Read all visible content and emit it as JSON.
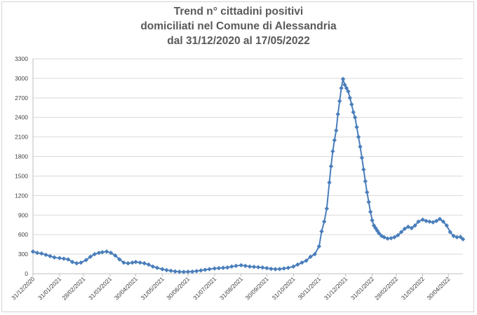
{
  "chart_data": {
    "type": "line",
    "title": [
      "Trend n° cittadini positivi",
      "domiciliati nel Comune di Alessandria",
      "dal 31/12/2020 al 17/05/2022"
    ],
    "xlabel": "",
    "ylabel": "",
    "ylim": [
      0,
      3300
    ],
    "yticks": [
      0,
      300,
      600,
      900,
      1200,
      1500,
      1800,
      2100,
      2400,
      2700,
      3000,
      3300
    ],
    "xlim": [
      "2020-12-31",
      "2022-05-17"
    ],
    "xticks": [
      "31/12/2020",
      "31/01/2021",
      "28/02/2021",
      "31/03/2021",
      "30/04/2021",
      "31/05/2021",
      "30/06/2021",
      "31/07/2021",
      "31/08/2021",
      "30/09/2021",
      "31/10/2021",
      "30/11/2021",
      "31/12/2021",
      "31/01/2022",
      "28/02/2022",
      "31/03/2022",
      "30/04/2022"
    ],
    "grid": "horizontal",
    "marker": "diamond",
    "color": "#4a7ebb",
    "series": [
      {
        "x": [
          "2020-12-31",
          "2021-01-05",
          "2021-01-10",
          "2021-01-15",
          "2021-01-20",
          "2021-01-25",
          "2021-01-31",
          "2021-02-05",
          "2021-02-10",
          "2021-02-15",
          "2021-02-20",
          "2021-02-25",
          "2021-03-03",
          "2021-03-08",
          "2021-03-13",
          "2021-03-18",
          "2021-03-22",
          "2021-03-27",
          "2021-04-01",
          "2021-04-06",
          "2021-04-11",
          "2021-04-16",
          "2021-04-21",
          "2021-04-26",
          "2021-04-30",
          "2021-05-05",
          "2021-05-10",
          "2021-05-15",
          "2021-05-20",
          "2021-05-25",
          "2021-05-31",
          "2021-06-05",
          "2021-06-10",
          "2021-06-15",
          "2021-06-20",
          "2021-06-25",
          "2021-06-30",
          "2021-07-05",
          "2021-07-10",
          "2021-07-15",
          "2021-07-20",
          "2021-07-25",
          "2021-07-31",
          "2021-08-05",
          "2021-08-10",
          "2021-08-15",
          "2021-08-20",
          "2021-08-25",
          "2021-08-31",
          "2021-09-05",
          "2021-09-10",
          "2021-09-15",
          "2021-09-20",
          "2021-09-25",
          "2021-09-30",
          "2021-10-05",
          "2021-10-10",
          "2021-10-15",
          "2021-10-20",
          "2021-10-25",
          "2021-10-31",
          "2021-11-05",
          "2021-11-10",
          "2021-11-15",
          "2021-11-20",
          "2021-11-25",
          "2021-11-30",
          "2021-12-03",
          "2021-12-06",
          "2021-12-09",
          "2021-12-12",
          "2021-12-14",
          "2021-12-16",
          "2021-12-18",
          "2021-12-20",
          "2021-12-22",
          "2021-12-24",
          "2021-12-26",
          "2021-12-28",
          "2021-12-30",
          "2022-01-01",
          "2022-01-03",
          "2022-01-05",
          "2022-01-07",
          "2022-01-09",
          "2022-01-11",
          "2022-01-13",
          "2022-01-15",
          "2022-01-17",
          "2022-01-19",
          "2022-01-21",
          "2022-01-23",
          "2022-01-25",
          "2022-01-27",
          "2022-01-29",
          "2022-01-31",
          "2022-02-02",
          "2022-02-04",
          "2022-02-06",
          "2022-02-08",
          "2022-02-11",
          "2022-02-14",
          "2022-02-18",
          "2022-02-22",
          "2022-02-26",
          "2022-03-02",
          "2022-03-06",
          "2022-03-10",
          "2022-03-14",
          "2022-03-18",
          "2022-03-22",
          "2022-03-26",
          "2022-03-31",
          "2022-04-04",
          "2022-04-08",
          "2022-04-12",
          "2022-04-16",
          "2022-04-20",
          "2022-04-24",
          "2022-04-28",
          "2022-05-02",
          "2022-05-06",
          "2022-05-10",
          "2022-05-14",
          "2022-05-17"
        ],
        "values": [
          340,
          320,
          310,
          290,
          270,
          250,
          240,
          230,
          220,
          180,
          160,
          170,
          210,
          260,
          300,
          320,
          330,
          340,
          320,
          280,
          220,
          170,
          160,
          170,
          180,
          170,
          160,
          140,
          110,
          90,
          70,
          55,
          45,
          35,
          30,
          28,
          30,
          32,
          40,
          50,
          60,
          70,
          80,
          85,
          90,
          95,
          110,
          120,
          130,
          120,
          110,
          105,
          100,
          95,
          85,
          75,
          70,
          72,
          80,
          90,
          110,
          140,
          170,
          200,
          260,
          300,
          420,
          650,
          800,
          1000,
          1400,
          1650,
          1880,
          2050,
          2200,
          2450,
          2650,
          2850,
          2990,
          2900,
          2850,
          2800,
          2700,
          2600,
          2480,
          2400,
          2250,
          2100,
          1950,
          1780,
          1600,
          1420,
          1250,
          1100,
          950,
          820,
          740,
          700,
          660,
          620,
          580,
          560,
          540,
          545,
          560,
          590,
          640,
          690,
          720,
          700,
          740,
          800,
          830,
          810,
          800,
          790,
          810,
          840,
          800,
          740,
          640,
          580,
          560,
          565,
          530
        ]
      }
    ]
  }
}
